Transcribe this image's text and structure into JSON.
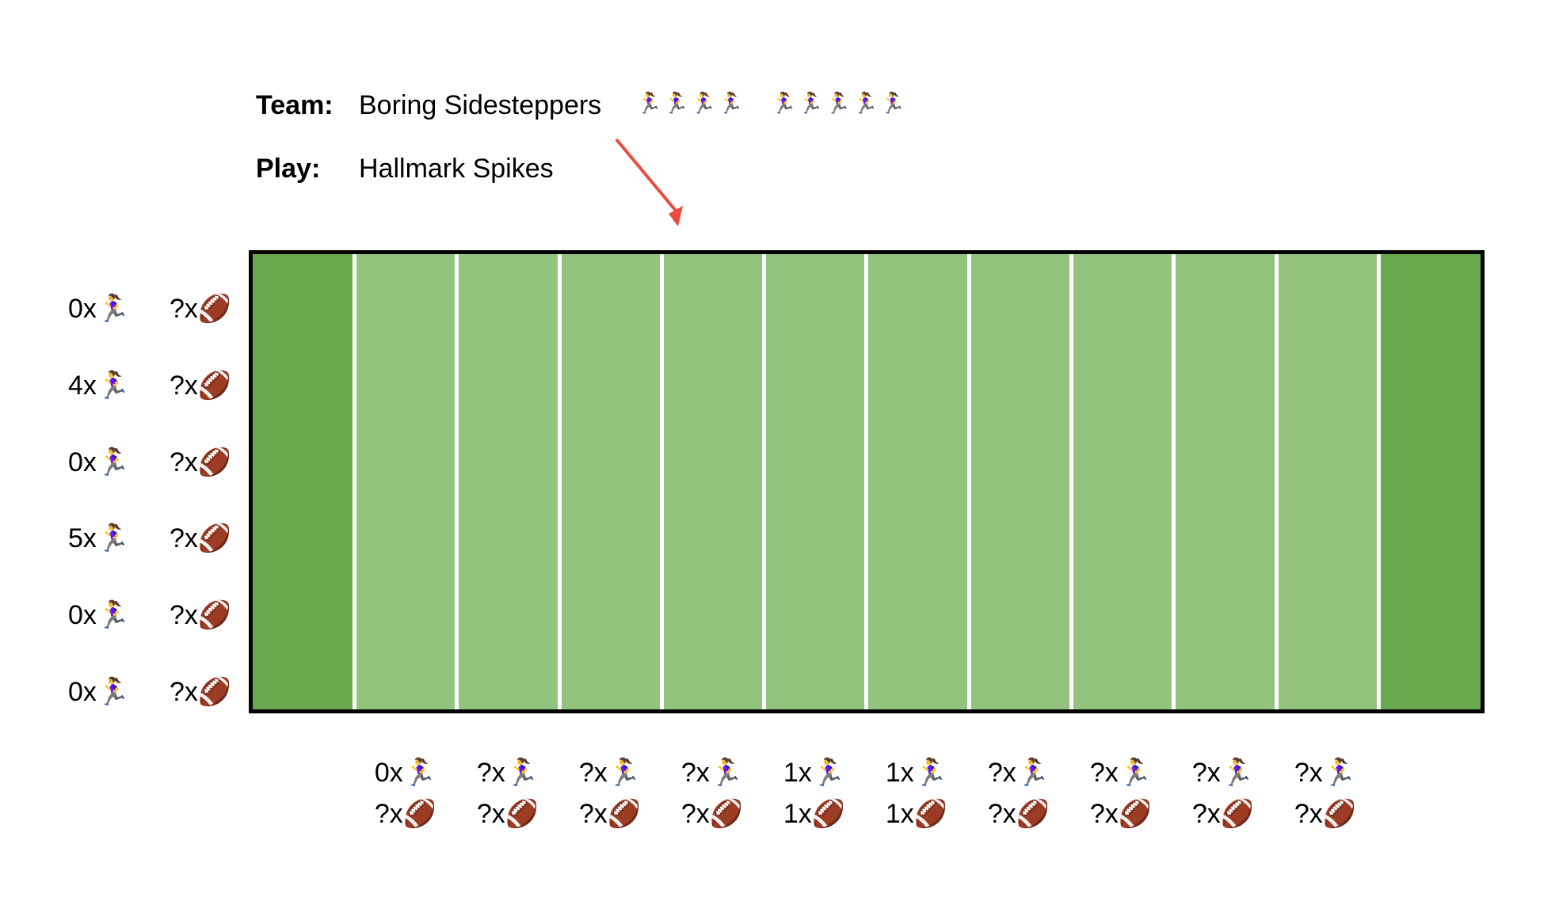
{
  "header": {
    "team_label": "Team:",
    "team_name": "Boring Sidesteppers",
    "play_label": "Play:",
    "play_name": "Hallmark Spikes",
    "runners_group_1": [
      "🏃‍♀️",
      "🏃‍♀️",
      "🏃‍♀️",
      "🏃‍♀️"
    ],
    "runners_group_2": [
      "🏃‍♀️",
      "🏃‍♀️",
      "🏃‍♀️",
      "🏃‍♀️",
      "🏃‍♀️"
    ]
  },
  "colors": {
    "endzone": "#6aa84f",
    "field": "#93c47d",
    "lines": "#ffffff",
    "arrow": "#e84c3d"
  },
  "field": {
    "zone_count": 10
  },
  "row_clues": [
    {
      "runners": "0x🏃‍♀️",
      "balls": "?x🏈"
    },
    {
      "runners": "4x🏃‍♀️",
      "balls": "?x🏈"
    },
    {
      "runners": "0x🏃‍♀️",
      "balls": "?x🏈"
    },
    {
      "runners": "5x🏃‍♀️",
      "balls": "?x🏈"
    },
    {
      "runners": "0x🏃‍♀️",
      "balls": "?x🏈"
    },
    {
      "runners": "0x🏃‍♀️",
      "balls": "?x🏈"
    }
  ],
  "column_clues": [
    {
      "runners": "0x🏃‍♀️",
      "balls": "?x🏈"
    },
    {
      "runners": "?x🏃‍♀️",
      "balls": "?x🏈"
    },
    {
      "runners": "?x🏃‍♀️",
      "balls": "?x🏈"
    },
    {
      "runners": "?x🏃‍♀️",
      "balls": "?x🏈"
    },
    {
      "runners": "1x🏃‍♀️",
      "balls": "1x🏈"
    },
    {
      "runners": "1x🏃‍♀️",
      "balls": "1x🏈"
    },
    {
      "runners": "?x🏃‍♀️",
      "balls": "?x🏈"
    },
    {
      "runners": "?x🏃‍♀️",
      "balls": "?x🏈"
    },
    {
      "runners": "?x🏃‍♀️",
      "balls": "?x🏈"
    },
    {
      "runners": "?x🏃‍♀️",
      "balls": "?x🏈"
    }
  ]
}
